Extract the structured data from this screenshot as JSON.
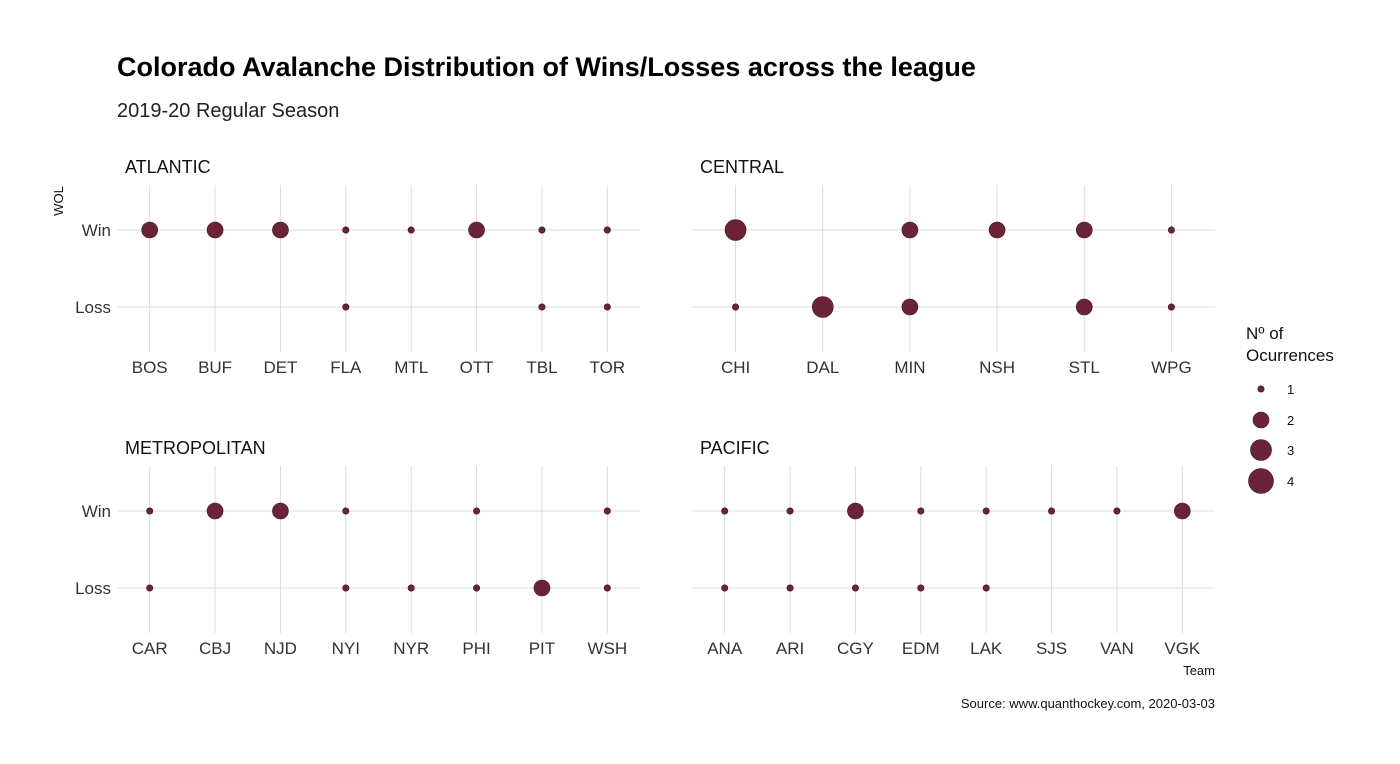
{
  "chart_data": {
    "type": "scatter",
    "title": "Colorado Avalanche Distribution of Wins/Losses across the league",
    "subtitle": "2019-20 Regular Season",
    "ylabel": "WOL",
    "xlabel": "Team",
    "y_categories": [
      "Loss",
      "Win"
    ],
    "caption": "Source: www.quanthockey.com, 2020-03-03",
    "point_color": "#6b2337",
    "grid": true,
    "legend": {
      "title_line1": "Nº of",
      "title_line2": "Ocurrences",
      "placement": "right",
      "values": [
        1,
        2,
        3,
        4
      ],
      "labels": [
        "1",
        "2",
        "3",
        "4"
      ]
    },
    "panels": [
      {
        "name": "ATLANTIC",
        "teams": [
          "BOS",
          "BUF",
          "DET",
          "FLA",
          "MTL",
          "OTT",
          "TBL",
          "TOR"
        ],
        "win": [
          2,
          2,
          2,
          1,
          1,
          2,
          1,
          1
        ],
        "loss": [
          0,
          0,
          0,
          1,
          0,
          0,
          1,
          1
        ]
      },
      {
        "name": "CENTRAL",
        "teams": [
          "CHI",
          "DAL",
          "MIN",
          "NSH",
          "STL",
          "WPG"
        ],
        "win": [
          3,
          0,
          2,
          2,
          2,
          1
        ],
        "loss": [
          1,
          3,
          2,
          0,
          2,
          1
        ]
      },
      {
        "name": "METROPOLITAN",
        "teams": [
          "CAR",
          "CBJ",
          "NJD",
          "NYI",
          "NYR",
          "PHI",
          "PIT",
          "WSH"
        ],
        "win": [
          1,
          2,
          2,
          1,
          0,
          1,
          0,
          1
        ],
        "loss": [
          1,
          0,
          0,
          1,
          1,
          1,
          2,
          1
        ]
      },
      {
        "name": "PACIFIC",
        "teams": [
          "ANA",
          "ARI",
          "CGY",
          "EDM",
          "LAK",
          "SJS",
          "VAN",
          "VGK"
        ],
        "win": [
          1,
          1,
          2,
          1,
          1,
          1,
          1,
          2
        ],
        "loss": [
          1,
          1,
          1,
          1,
          1,
          0,
          0,
          0
        ]
      }
    ]
  }
}
